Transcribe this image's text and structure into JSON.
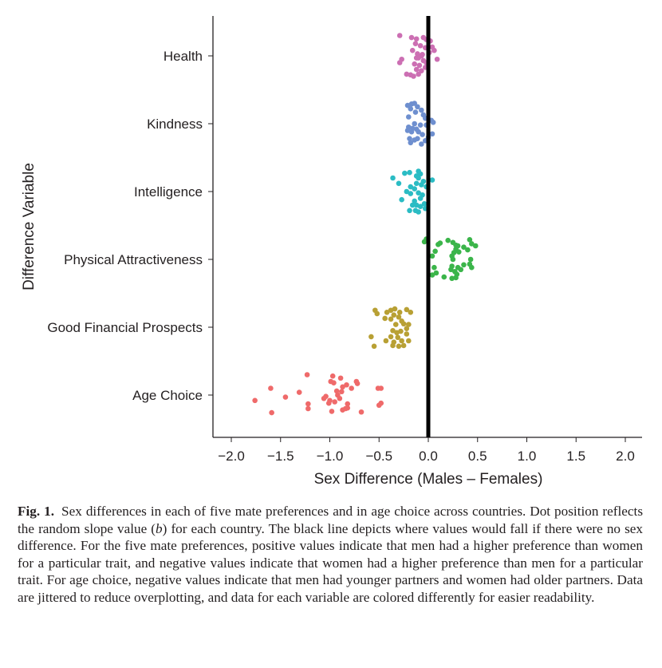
{
  "chart_data": {
    "type": "scatter",
    "subtype": "jittered strip plot",
    "title": "",
    "xlabel": "Sex Difference (Males – Females)",
    "ylabel": "Difference Variable",
    "xlim": [
      -2.2,
      2.2
    ],
    "xticks": [
      -2.0,
      -1.5,
      -1.0,
      -0.5,
      0.0,
      0.5,
      1.0,
      1.5,
      2.0
    ],
    "xtick_labels": [
      "−2.0",
      "−1.5",
      "−1.0",
      "−0.5",
      "0.0",
      "0.5",
      "1.0",
      "1.5",
      "2.0"
    ],
    "grid": false,
    "legend": "none",
    "reference_line": {
      "x": 0.0,
      "color": "#000000",
      "description": "no sex difference"
    },
    "categories": [
      "Health",
      "Kindness",
      "Intelligence",
      "Physical Attractiveness",
      "Good Financial Prospects",
      "Age Choice"
    ],
    "series": [
      {
        "name": "Health",
        "color": "#cc6fb3",
        "points": [
          [
            -0.29,
            -0.3
          ],
          [
            -0.17,
            -0.27
          ],
          [
            -0.12,
            -0.25
          ],
          [
            -0.05,
            -0.27
          ],
          [
            -0.02,
            -0.24
          ],
          [
            0.02,
            -0.22
          ],
          [
            -0.13,
            -0.18
          ],
          [
            -0.08,
            -0.15
          ],
          [
            -0.03,
            -0.12
          ],
          [
            0.04,
            -0.13
          ],
          [
            0.06,
            -0.08
          ],
          [
            -0.16,
            -0.08
          ],
          [
            -0.11,
            -0.03
          ],
          [
            -0.06,
            -0.02
          ],
          [
            0.01,
            -0.05
          ],
          [
            -0.1,
            0.03
          ],
          [
            -0.27,
            0.05
          ],
          [
            -0.29,
            0.1
          ],
          [
            -0.05,
            0.07
          ],
          [
            -0.02,
            0.1
          ],
          [
            0.09,
            0.05
          ],
          [
            -0.14,
            0.12
          ],
          [
            -0.09,
            0.14
          ],
          [
            -0.03,
            0.17
          ],
          [
            -0.12,
            0.2
          ],
          [
            -0.07,
            0.22
          ],
          [
            -0.22,
            0.27
          ],
          [
            -0.18,
            0.28
          ],
          [
            -0.15,
            0.3
          ],
          [
            -0.1,
            0.27
          ],
          [
            -0.12,
            0.03
          ],
          [
            -0.07,
            0.0
          ]
        ]
      },
      {
        "name": "Kindness",
        "color": "#6e8fcf",
        "points": [
          [
            -0.21,
            -0.27
          ],
          [
            -0.17,
            -0.29
          ],
          [
            -0.14,
            -0.3
          ],
          [
            -0.11,
            -0.25
          ],
          [
            -0.18,
            -0.22
          ],
          [
            -0.07,
            -0.2
          ],
          [
            -0.13,
            -0.17
          ],
          [
            -0.05,
            -0.13
          ],
          [
            -0.2,
            -0.1
          ],
          [
            -0.03,
            -0.08
          ],
          [
            -0.02,
            0.02
          ],
          [
            0.03,
            -0.05
          ],
          [
            0.05,
            -0.02
          ],
          [
            -0.14,
            0.0
          ],
          [
            -0.08,
            0.02
          ],
          [
            -0.2,
            0.05
          ],
          [
            -0.16,
            0.07
          ],
          [
            -0.12,
            0.08
          ],
          [
            -0.17,
            0.12
          ],
          [
            -0.1,
            0.12
          ],
          [
            -0.06,
            0.16
          ],
          [
            0.04,
            0.15
          ],
          [
            0.0,
            0.2
          ],
          [
            -0.19,
            0.22
          ],
          [
            -0.14,
            0.24
          ],
          [
            -0.11,
            0.22
          ],
          [
            -0.03,
            0.25
          ],
          [
            -0.18,
            0.28
          ],
          [
            -0.07,
            0.3
          ],
          [
            -0.21,
            0.1
          ]
        ]
      },
      {
        "name": "Intelligence",
        "color": "#2bbcc4",
        "points": [
          [
            -0.24,
            -0.27
          ],
          [
            -0.19,
            -0.28
          ],
          [
            -0.1,
            -0.3
          ],
          [
            -0.08,
            -0.26
          ],
          [
            -0.12,
            -0.23
          ],
          [
            -0.36,
            -0.2
          ],
          [
            -0.1,
            -0.2
          ],
          [
            -0.05,
            -0.15
          ],
          [
            0.04,
            -0.17
          ],
          [
            -0.3,
            -0.12
          ],
          [
            -0.12,
            -0.12
          ],
          [
            -0.07,
            -0.1
          ],
          [
            -0.02,
            -0.07
          ],
          [
            -0.18,
            -0.07
          ],
          [
            -0.14,
            -0.04
          ],
          [
            -0.22,
            0.0
          ],
          [
            -0.18,
            0.03
          ],
          [
            -0.1,
            0.02
          ],
          [
            -0.06,
            0.05
          ],
          [
            -0.27,
            0.12
          ],
          [
            -0.14,
            0.14
          ],
          [
            -0.08,
            0.1
          ],
          [
            -0.12,
            0.2
          ],
          [
            -0.08,
            0.22
          ],
          [
            -0.04,
            0.18
          ],
          [
            -0.19,
            0.28
          ],
          [
            -0.13,
            0.28
          ],
          [
            -0.1,
            0.3
          ],
          [
            -0.03,
            0.25
          ],
          [
            -0.16,
            0.2
          ]
        ]
      },
      {
        "name": "Physical Attractiveness",
        "color": "#3bb54a",
        "points": [
          [
            -0.04,
            -0.26
          ],
          [
            -0.02,
            -0.3
          ],
          [
            0.1,
            -0.22
          ],
          [
            0.12,
            -0.24
          ],
          [
            0.2,
            -0.28
          ],
          [
            0.25,
            -0.25
          ],
          [
            0.28,
            -0.21
          ],
          [
            0.3,
            -0.2
          ],
          [
            0.42,
            -0.29
          ],
          [
            0.44,
            -0.23
          ],
          [
            0.48,
            -0.2
          ],
          [
            0.36,
            -0.18
          ],
          [
            0.4,
            -0.14
          ],
          [
            0.28,
            -0.15
          ],
          [
            0.31,
            -0.11
          ],
          [
            0.26,
            -0.1
          ],
          [
            0.07,
            -0.12
          ],
          [
            0.04,
            -0.05
          ],
          [
            0.24,
            -0.05
          ],
          [
            0.25,
            0.0
          ],
          [
            0.43,
            0.0
          ],
          [
            0.06,
            0.12
          ],
          [
            0.24,
            0.1
          ],
          [
            0.3,
            0.12
          ],
          [
            0.36,
            0.08
          ],
          [
            0.42,
            0.07
          ],
          [
            0.44,
            0.12
          ],
          [
            0.23,
            0.15
          ],
          [
            0.27,
            0.18
          ],
          [
            0.29,
            0.22
          ],
          [
            0.33,
            0.15
          ],
          [
            0.04,
            0.23
          ],
          [
            0.08,
            0.2
          ],
          [
            0.16,
            0.26
          ],
          [
            0.24,
            0.28
          ],
          [
            0.28,
            0.27
          ]
        ]
      },
      {
        "name": "Good Financial Prospects",
        "color": "#b8a034",
        "points": [
          [
            -0.54,
            -0.25
          ],
          [
            -0.52,
            -0.2
          ],
          [
            -0.42,
            -0.22
          ],
          [
            -0.38,
            -0.25
          ],
          [
            -0.34,
            -0.27
          ],
          [
            -0.29,
            -0.22
          ],
          [
            -0.22,
            -0.26
          ],
          [
            -0.18,
            -0.22
          ],
          [
            -0.35,
            -0.18
          ],
          [
            -0.38,
            -0.12
          ],
          [
            -0.3,
            -0.15
          ],
          [
            -0.27,
            -0.09
          ],
          [
            -0.44,
            -0.13
          ],
          [
            -0.25,
            -0.05
          ],
          [
            -0.2,
            -0.04
          ],
          [
            -0.33,
            -0.04
          ],
          [
            -0.22,
            0.02
          ],
          [
            -0.36,
            0.05
          ],
          [
            -0.32,
            0.08
          ],
          [
            -0.28,
            0.06
          ],
          [
            -0.22,
            0.1
          ],
          [
            -0.58,
            0.14
          ],
          [
            -0.38,
            0.14
          ],
          [
            -0.31,
            0.15
          ],
          [
            -0.43,
            0.2
          ],
          [
            -0.35,
            0.22
          ],
          [
            -0.27,
            0.2
          ],
          [
            -0.2,
            0.2
          ],
          [
            -0.55,
            0.28
          ],
          [
            -0.36,
            0.27
          ],
          [
            -0.3,
            0.28
          ],
          [
            -0.25,
            0.27
          ]
        ]
      },
      {
        "name": "Age Choice",
        "color": "#ef6a6a",
        "points": [
          [
            -1.23,
            -0.3
          ],
          [
            -0.97,
            -0.28
          ],
          [
            -0.89,
            -0.25
          ],
          [
            -0.99,
            -0.2
          ],
          [
            -0.96,
            -0.18
          ],
          [
            -0.73,
            -0.2
          ],
          [
            -0.72,
            -0.17
          ],
          [
            -0.83,
            -0.15
          ],
          [
            -1.6,
            -0.1
          ],
          [
            -0.87,
            -0.12
          ],
          [
            -0.78,
            -0.1
          ],
          [
            -0.51,
            -0.1
          ],
          [
            -0.48,
            -0.1
          ],
          [
            -1.31,
            -0.04
          ],
          [
            -0.93,
            -0.06
          ],
          [
            -0.88,
            -0.05
          ],
          [
            -0.92,
            0.0
          ],
          [
            -1.45,
            0.03
          ],
          [
            -1.06,
            0.05
          ],
          [
            -1.04,
            0.02
          ],
          [
            -0.9,
            0.05
          ],
          [
            -1.76,
            0.08
          ],
          [
            -1.22,
            0.13
          ],
          [
            -1.01,
            0.12
          ],
          [
            -0.82,
            0.13
          ],
          [
            -0.48,
            0.12
          ],
          [
            -0.5,
            0.15
          ],
          [
            -1.22,
            0.2
          ],
          [
            -0.84,
            0.2
          ],
          [
            -0.87,
            0.22
          ],
          [
            -0.82,
            0.19
          ],
          [
            -1.59,
            0.26
          ],
          [
            -0.98,
            0.24
          ],
          [
            -0.68,
            0.25
          ],
          [
            -1.0,
            0.08
          ],
          [
            -0.95,
            0.1
          ]
        ]
      }
    ]
  },
  "caption": {
    "label": "Fig. 1.",
    "text": "Sex differences in each of five mate preferences and in age choice across countries. Dot position reflects the random slope value (",
    "italic": "b",
    "text_after": ") for each country. The black line depicts where values would fall if there were no sex difference. For the five mate preferences, positive values indicate that men had a higher preference than women for a particular trait, and negative values indicate that women had a higher preference than men for a particular trait. For age choice, negative values indicate that men had younger partners and women had older partners. Data are jittered to reduce overplotting, and data for each variable are colored differently for easier readability."
  }
}
